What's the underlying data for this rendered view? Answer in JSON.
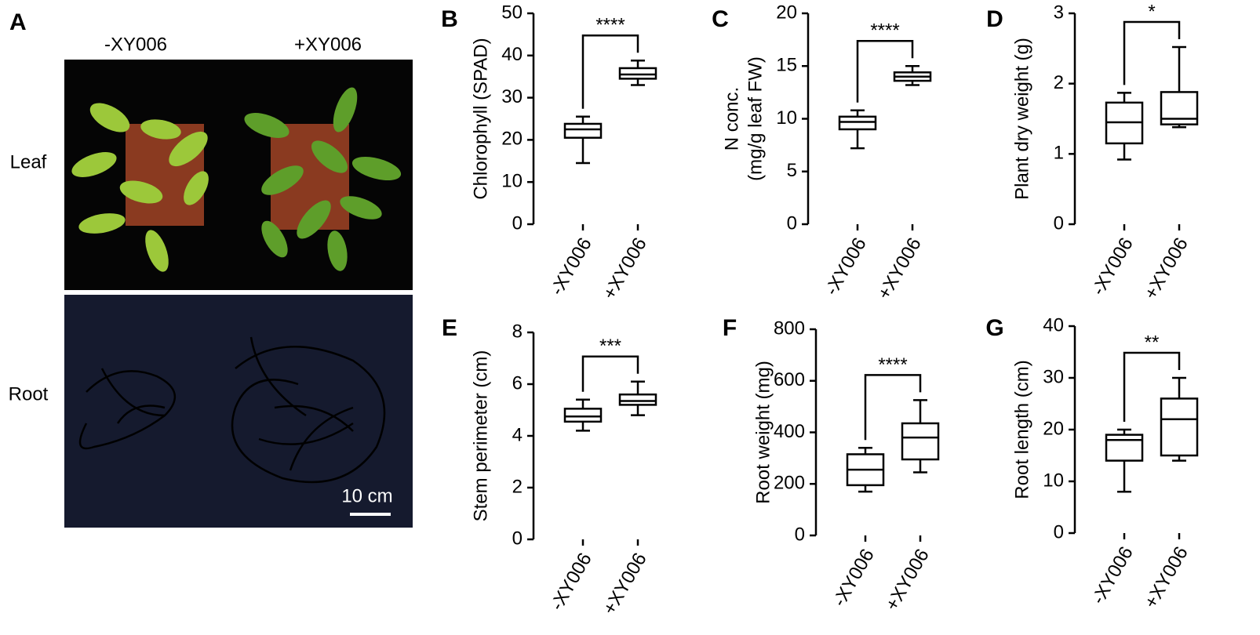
{
  "photo_panel": {
    "panel": "A",
    "columns": [
      "-XY006",
      "+XY006"
    ],
    "rows": [
      "Leaf",
      "Root"
    ],
    "scale_bar": "10 cm"
  },
  "chart_data": [
    {
      "type": "box",
      "panel": "B",
      "ylabel": [
        "Chlorophyll (SPAD)"
      ],
      "categories": [
        "-XY006",
        "+XY006"
      ],
      "boxes": [
        {
          "min": 14.5,
          "q1": 20.5,
          "median": 22.5,
          "q3": 23.8,
          "max": 25.5
        },
        {
          "min": 33,
          "q1": 34.5,
          "median": 35.5,
          "q3": 37,
          "max": 38.8
        }
      ],
      "significance": "****",
      "ylim": [
        0,
        50
      ],
      "yticks": [
        0,
        10,
        20,
        30,
        40,
        50
      ]
    },
    {
      "type": "box",
      "panel": "C",
      "ylabel": [
        "N conc.",
        "(mg/g leaf FW)"
      ],
      "categories": [
        "-XY006",
        "+XY006"
      ],
      "boxes": [
        {
          "min": 7.2,
          "q1": 9,
          "median": 9.7,
          "q3": 10.2,
          "max": 10.8
        },
        {
          "min": 13.2,
          "q1": 13.6,
          "median": 14,
          "q3": 14.4,
          "max": 15
        }
      ],
      "significance": "****",
      "ylim": [
        0,
        20
      ],
      "yticks": [
        0,
        5,
        10,
        15,
        20
      ]
    },
    {
      "type": "box",
      "panel": "D",
      "ylabel": [
        "Plant dry weight (g)"
      ],
      "categories": [
        "-XY006",
        "+XY006"
      ],
      "boxes": [
        {
          "min": 0.92,
          "q1": 1.15,
          "median": 1.45,
          "q3": 1.73,
          "max": 1.87
        },
        {
          "min": 1.38,
          "q1": 1.42,
          "median": 1.5,
          "q3": 1.88,
          "max": 2.52
        }
      ],
      "significance": "*",
      "ylim": [
        0,
        3
      ],
      "yticks": [
        0,
        1,
        2,
        3
      ]
    },
    {
      "type": "box",
      "panel": "E",
      "ylabel": [
        "Stem perimeter (cm)"
      ],
      "categories": [
        "-XY006",
        "+XY006"
      ],
      "boxes": [
        {
          "min": 4.2,
          "q1": 4.55,
          "median": 4.75,
          "q3": 5.05,
          "max": 5.4
        },
        {
          "min": 4.8,
          "q1": 5.2,
          "median": 5.35,
          "q3": 5.6,
          "max": 6.1
        }
      ],
      "significance": "***",
      "ylim": [
        0,
        8
      ],
      "yticks": [
        0,
        2,
        4,
        6,
        8
      ]
    },
    {
      "type": "box",
      "panel": "F",
      "ylabel": [
        "Root weight (mg)"
      ],
      "categories": [
        "-XY006",
        "+XY006"
      ],
      "boxes": [
        {
          "min": 170,
          "q1": 195,
          "median": 255,
          "q3": 315,
          "max": 340
        },
        {
          "min": 245,
          "q1": 295,
          "median": 380,
          "q3": 435,
          "max": 525
        }
      ],
      "significance": "****",
      "ylim": [
        0,
        800
      ],
      "yticks": [
        0,
        200,
        400,
        600,
        800
      ]
    },
    {
      "type": "box",
      "panel": "G",
      "ylabel": [
        "Root length (cm)"
      ],
      "categories": [
        "-XY006",
        "+XY006"
      ],
      "boxes": [
        {
          "min": 8,
          "q1": 14,
          "median": 18,
          "q3": 19,
          "max": 20
        },
        {
          "min": 14,
          "q1": 15,
          "median": 22,
          "q3": 26,
          "max": 30
        }
      ],
      "significance": "**",
      "ylim": [
        0,
        40
      ],
      "yticks": [
        0,
        10,
        20,
        30,
        40
      ]
    }
  ]
}
